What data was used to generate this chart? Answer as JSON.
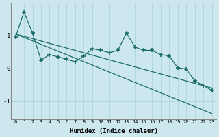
{
  "xlabel": "Humidex (Indice chaleur)",
  "bg_color": "#cce8ee",
  "line_color": "#1a6b6b",
  "grid_color": "#b0d8de",
  "ylim": [
    -1.55,
    2.0
  ],
  "xlim": [
    -0.5,
    23.5
  ],
  "yticks": [
    -1,
    0,
    1
  ],
  "xticks": [
    0,
    1,
    2,
    3,
    4,
    5,
    6,
    7,
    8,
    9,
    10,
    11,
    12,
    13,
    14,
    15,
    16,
    17,
    18,
    19,
    20,
    21,
    22,
    23
  ],
  "jagged_x": [
    0,
    1,
    2,
    3,
    4,
    5,
    6,
    7,
    8,
    9,
    10,
    11,
    12,
    13,
    14,
    15,
    16,
    17,
    18,
    19,
    20,
    21,
    22,
    23
  ],
  "jagged_y": [
    0.95,
    1.72,
    1.08,
    0.25,
    0.42,
    0.35,
    0.28,
    0.2,
    0.38,
    0.6,
    0.55,
    0.48,
    0.55,
    1.08,
    0.65,
    0.55,
    0.55,
    0.42,
    0.38,
    0.02,
    -0.02,
    -0.38,
    -0.52,
    -0.68
  ],
  "upper_line_x": [
    0,
    23
  ],
  "upper_line_y": [
    1.05,
    -0.6
  ],
  "lower_line_x": [
    0,
    23
  ],
  "lower_line_y": [
    1.05,
    -1.38
  ]
}
